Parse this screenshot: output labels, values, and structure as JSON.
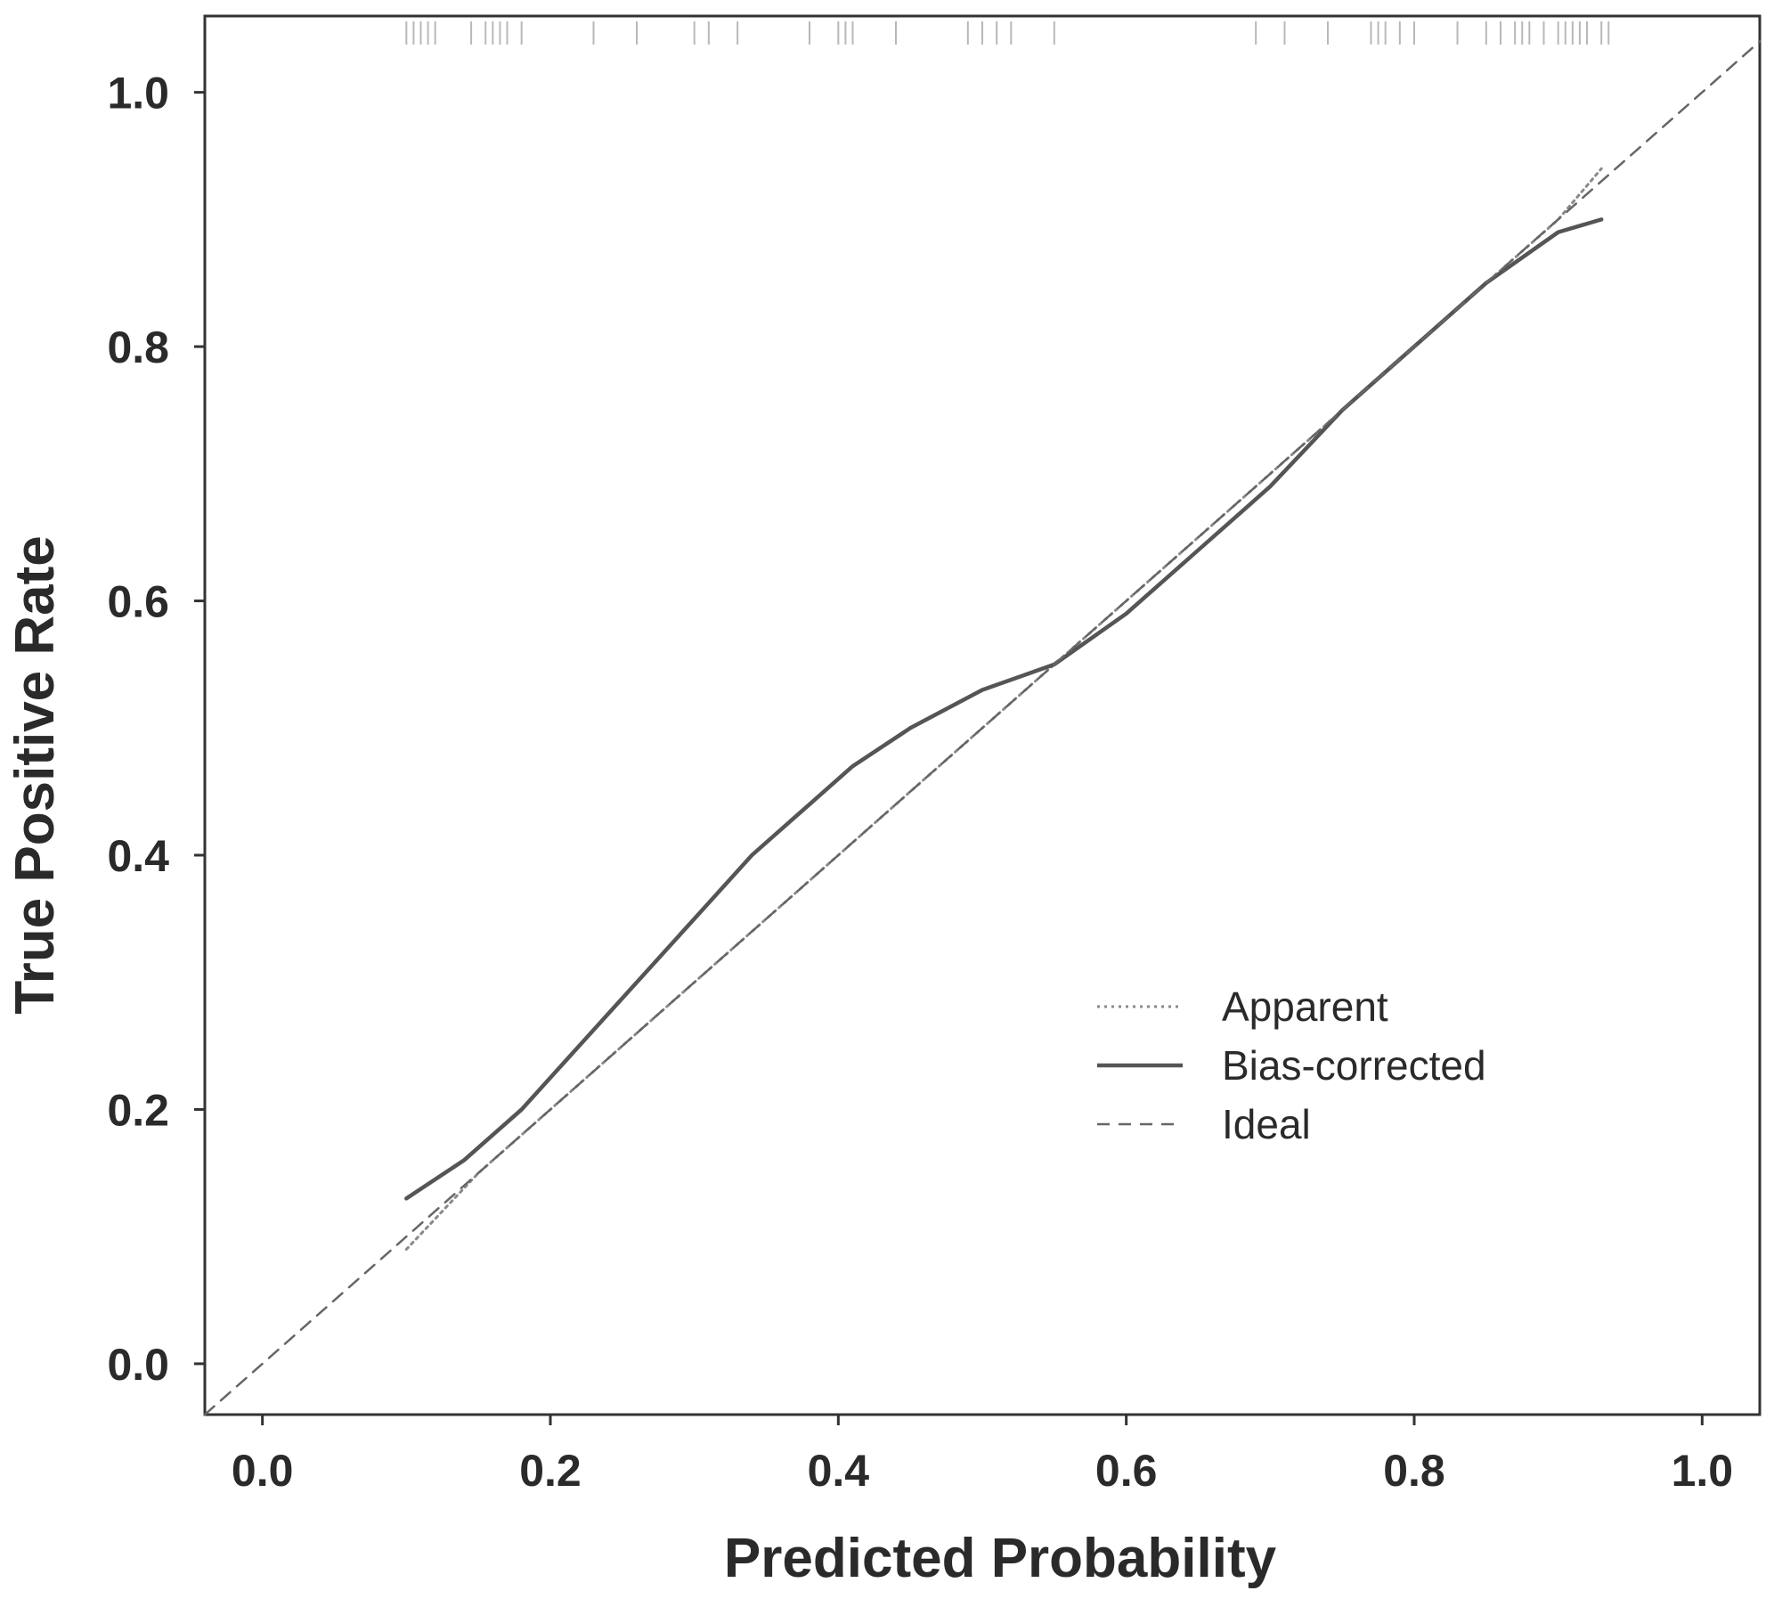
{
  "chart_data": {
    "type": "line",
    "title": "",
    "xlabel": "Predicted Probability",
    "ylabel": "True Positive Rate",
    "xlim": [
      -0.04,
      1.04
    ],
    "ylim": [
      -0.04,
      1.06
    ],
    "xticks": [
      "0.0",
      "0.2",
      "0.4",
      "0.6",
      "0.8",
      "1.0"
    ],
    "yticks": [
      "0.0",
      "0.2",
      "0.4",
      "0.6",
      "0.8",
      "1.0"
    ],
    "grid": false,
    "legend_position": "bottom-right",
    "series": [
      {
        "name": "Apparent",
        "style": "dotted",
        "x": [
          0.1,
          0.15,
          0.2,
          0.25,
          0.3,
          0.35,
          0.4,
          0.45,
          0.5,
          0.55,
          0.6,
          0.65,
          0.7,
          0.75,
          0.8,
          0.85,
          0.9,
          0.93
        ],
        "y": [
          0.09,
          0.15,
          0.2,
          0.25,
          0.3,
          0.35,
          0.4,
          0.45,
          0.5,
          0.55,
          0.6,
          0.65,
          0.7,
          0.75,
          0.8,
          0.85,
          0.9,
          0.94
        ]
      },
      {
        "name": "Bias-corrected",
        "style": "solid",
        "x": [
          0.1,
          0.14,
          0.18,
          0.22,
          0.26,
          0.3,
          0.34,
          0.38,
          0.41,
          0.45,
          0.5,
          0.55,
          0.6,
          0.65,
          0.7,
          0.75,
          0.8,
          0.85,
          0.9,
          0.93
        ],
        "y": [
          0.13,
          0.16,
          0.2,
          0.25,
          0.3,
          0.35,
          0.4,
          0.44,
          0.47,
          0.5,
          0.53,
          0.55,
          0.59,
          0.64,
          0.69,
          0.75,
          0.8,
          0.85,
          0.89,
          0.9
        ]
      },
      {
        "name": "Ideal",
        "style": "dashed",
        "x": [
          -0.04,
          1.04
        ],
        "y": [
          -0.04,
          1.04
        ]
      }
    ],
    "rug": [
      0.1,
      0.105,
      0.11,
      0.115,
      0.12,
      0.145,
      0.155,
      0.16,
      0.165,
      0.17,
      0.18,
      0.23,
      0.26,
      0.3,
      0.31,
      0.33,
      0.38,
      0.4,
      0.405,
      0.41,
      0.44,
      0.49,
      0.5,
      0.51,
      0.52,
      0.55,
      0.69,
      0.71,
      0.74,
      0.77,
      0.775,
      0.78,
      0.79,
      0.8,
      0.83,
      0.85,
      0.86,
      0.87,
      0.875,
      0.88,
      0.89,
      0.9,
      0.905,
      0.91,
      0.915,
      0.92,
      0.93,
      0.935
    ]
  }
}
